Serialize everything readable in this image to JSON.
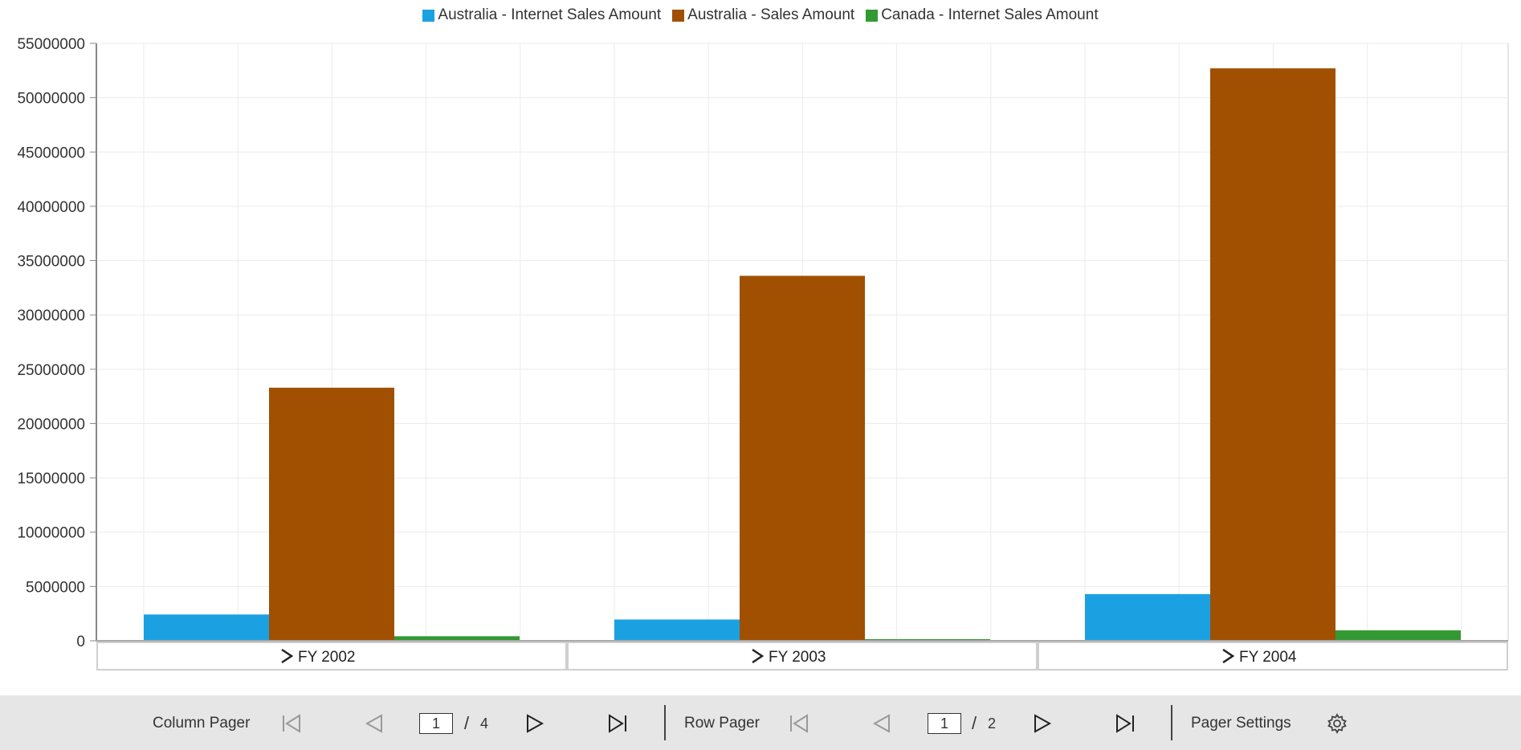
{
  "chart_data": {
    "type": "bar",
    "categories": [
      "FY 2002",
      "FY 2003",
      "FY 2004"
    ],
    "series": [
      {
        "name": "Australia - Internet Sales Amount",
        "color": "#1ba1e2",
        "values": [
          2420000,
          1960000,
          4300000
        ]
      },
      {
        "name": "Australia - Sales Amount",
        "color": "#a05000",
        "values": [
          23300000,
          33600000,
          52700000
        ]
      },
      {
        "name": "Canada - Internet Sales Amount",
        "color": "#339933",
        "values": [
          420000,
          150000,
          960000
        ]
      }
    ],
    "ylim": [
      0,
      55000000
    ],
    "yticks": [
      0,
      5000000,
      10000000,
      15000000,
      20000000,
      25000000,
      30000000,
      35000000,
      40000000,
      45000000,
      50000000,
      55000000
    ],
    "ytick_labels": [
      "0",
      "5000000",
      "10000000",
      "15000000",
      "20000000",
      "25000000",
      "30000000",
      "35000000",
      "40000000",
      "45000000",
      "50000000",
      "55000000"
    ],
    "grid": true,
    "legend_position": "top-center",
    "category_expand_icon": "chevron-right-icon"
  },
  "pager": {
    "column": {
      "label": "Column Pager",
      "current": "1",
      "total": "4"
    },
    "row": {
      "label": "Row Pager",
      "current": "1",
      "total": "2"
    },
    "slash": "/",
    "settings_label": "Pager Settings",
    "icons": {
      "first": "first-page-icon",
      "prev": "previous-page-icon",
      "next": "next-page-icon",
      "last": "last-page-icon",
      "settings": "gear-icon"
    }
  }
}
